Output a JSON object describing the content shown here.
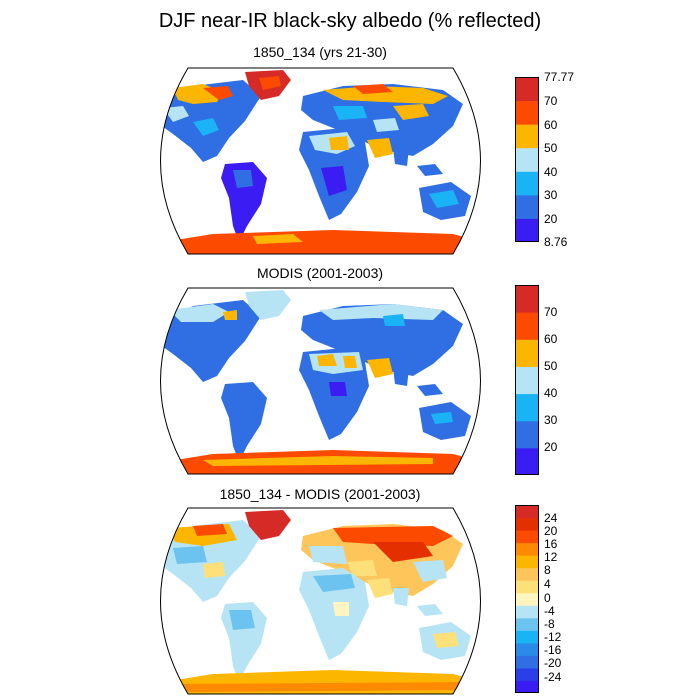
{
  "title": "DJF near-IR black-sky albedo (% reflected)",
  "panels": [
    {
      "title": "1850_134 (yrs 21-30)",
      "colorbar": {
        "colors": [
          "#3b1cf2",
          "#2f6fe3",
          "#1ab3f5",
          "#b7e4f5",
          "#fdb600",
          "#fc4a00",
          "#d62a26"
        ],
        "labels": [
          "77.77",
          "70",
          "60",
          "50",
          "40",
          "30",
          "20",
          "8.76"
        ]
      }
    },
    {
      "title": "MODIS (2001-2003)",
      "colorbar": {
        "colors": [
          "#3b1cf2",
          "#2f6fe3",
          "#1ab3f5",
          "#b7e4f5",
          "#fdb600",
          "#fc4a00",
          "#d62a26"
        ],
        "labels": [
          "70",
          "60",
          "50",
          "40",
          "30",
          "20"
        ]
      }
    },
    {
      "title": "1850_134 - MODIS (2001-2003)",
      "colorbar": {
        "colors": [
          "#3b1cf2",
          "#2a3fe8",
          "#2f6fe3",
          "#2a8be8",
          "#1ab3f5",
          "#6cc3f0",
          "#b7e4f5",
          "#fff5c0",
          "#fde07a",
          "#fdc55a",
          "#fdb600",
          "#fd8a00",
          "#fc4a00",
          "#e43000",
          "#d62a26"
        ],
        "labels": [
          "24",
          "20",
          "16",
          "12",
          "8",
          "4",
          "0",
          "-4",
          "-8",
          "-12",
          "-16",
          "-20",
          "-24"
        ]
      }
    }
  ]
}
